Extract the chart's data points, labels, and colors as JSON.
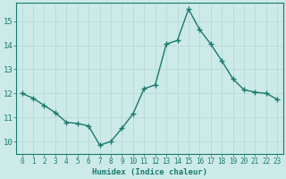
{
  "x": [
    0,
    1,
    2,
    3,
    4,
    5,
    6,
    7,
    8,
    9,
    10,
    11,
    12,
    13,
    14,
    15,
    16,
    17,
    18,
    19,
    20,
    21,
    22,
    23
  ],
  "y": [
    12.0,
    11.8,
    11.5,
    11.2,
    10.8,
    10.75,
    10.65,
    9.85,
    10.0,
    10.55,
    11.15,
    12.2,
    12.35,
    14.05,
    14.2,
    15.5,
    14.65,
    14.05,
    13.35,
    12.6,
    12.15,
    12.05,
    12.0,
    11.75
  ],
  "line_color": "#1a7a6e",
  "marker": "+",
  "marker_size": 4,
  "bg_color": "#cceae8",
  "grid_color": "#b8d8d5",
  "xlabel": "Humidex (Indice chaleur)",
  "ylabel": "",
  "xlim": [
    -0.5,
    23.5
  ],
  "ylim": [
    9.5,
    15.75
  ],
  "yticks": [
    10,
    11,
    12,
    13,
    14,
    15
  ],
  "xticks": [
    0,
    1,
    2,
    3,
    4,
    5,
    6,
    7,
    8,
    9,
    10,
    11,
    12,
    13,
    14,
    15,
    16,
    17,
    18,
    19,
    20,
    21,
    22,
    23
  ],
  "xtick_labels": [
    "0",
    "1",
    "2",
    "3",
    "4",
    "5",
    "6",
    "7",
    "8",
    "9",
    "10",
    "11",
    "12",
    "13",
    "14",
    "15",
    "16",
    "17",
    "18",
    "19",
    "20",
    "21",
    "22",
    "23"
  ],
  "line_width": 1.0
}
